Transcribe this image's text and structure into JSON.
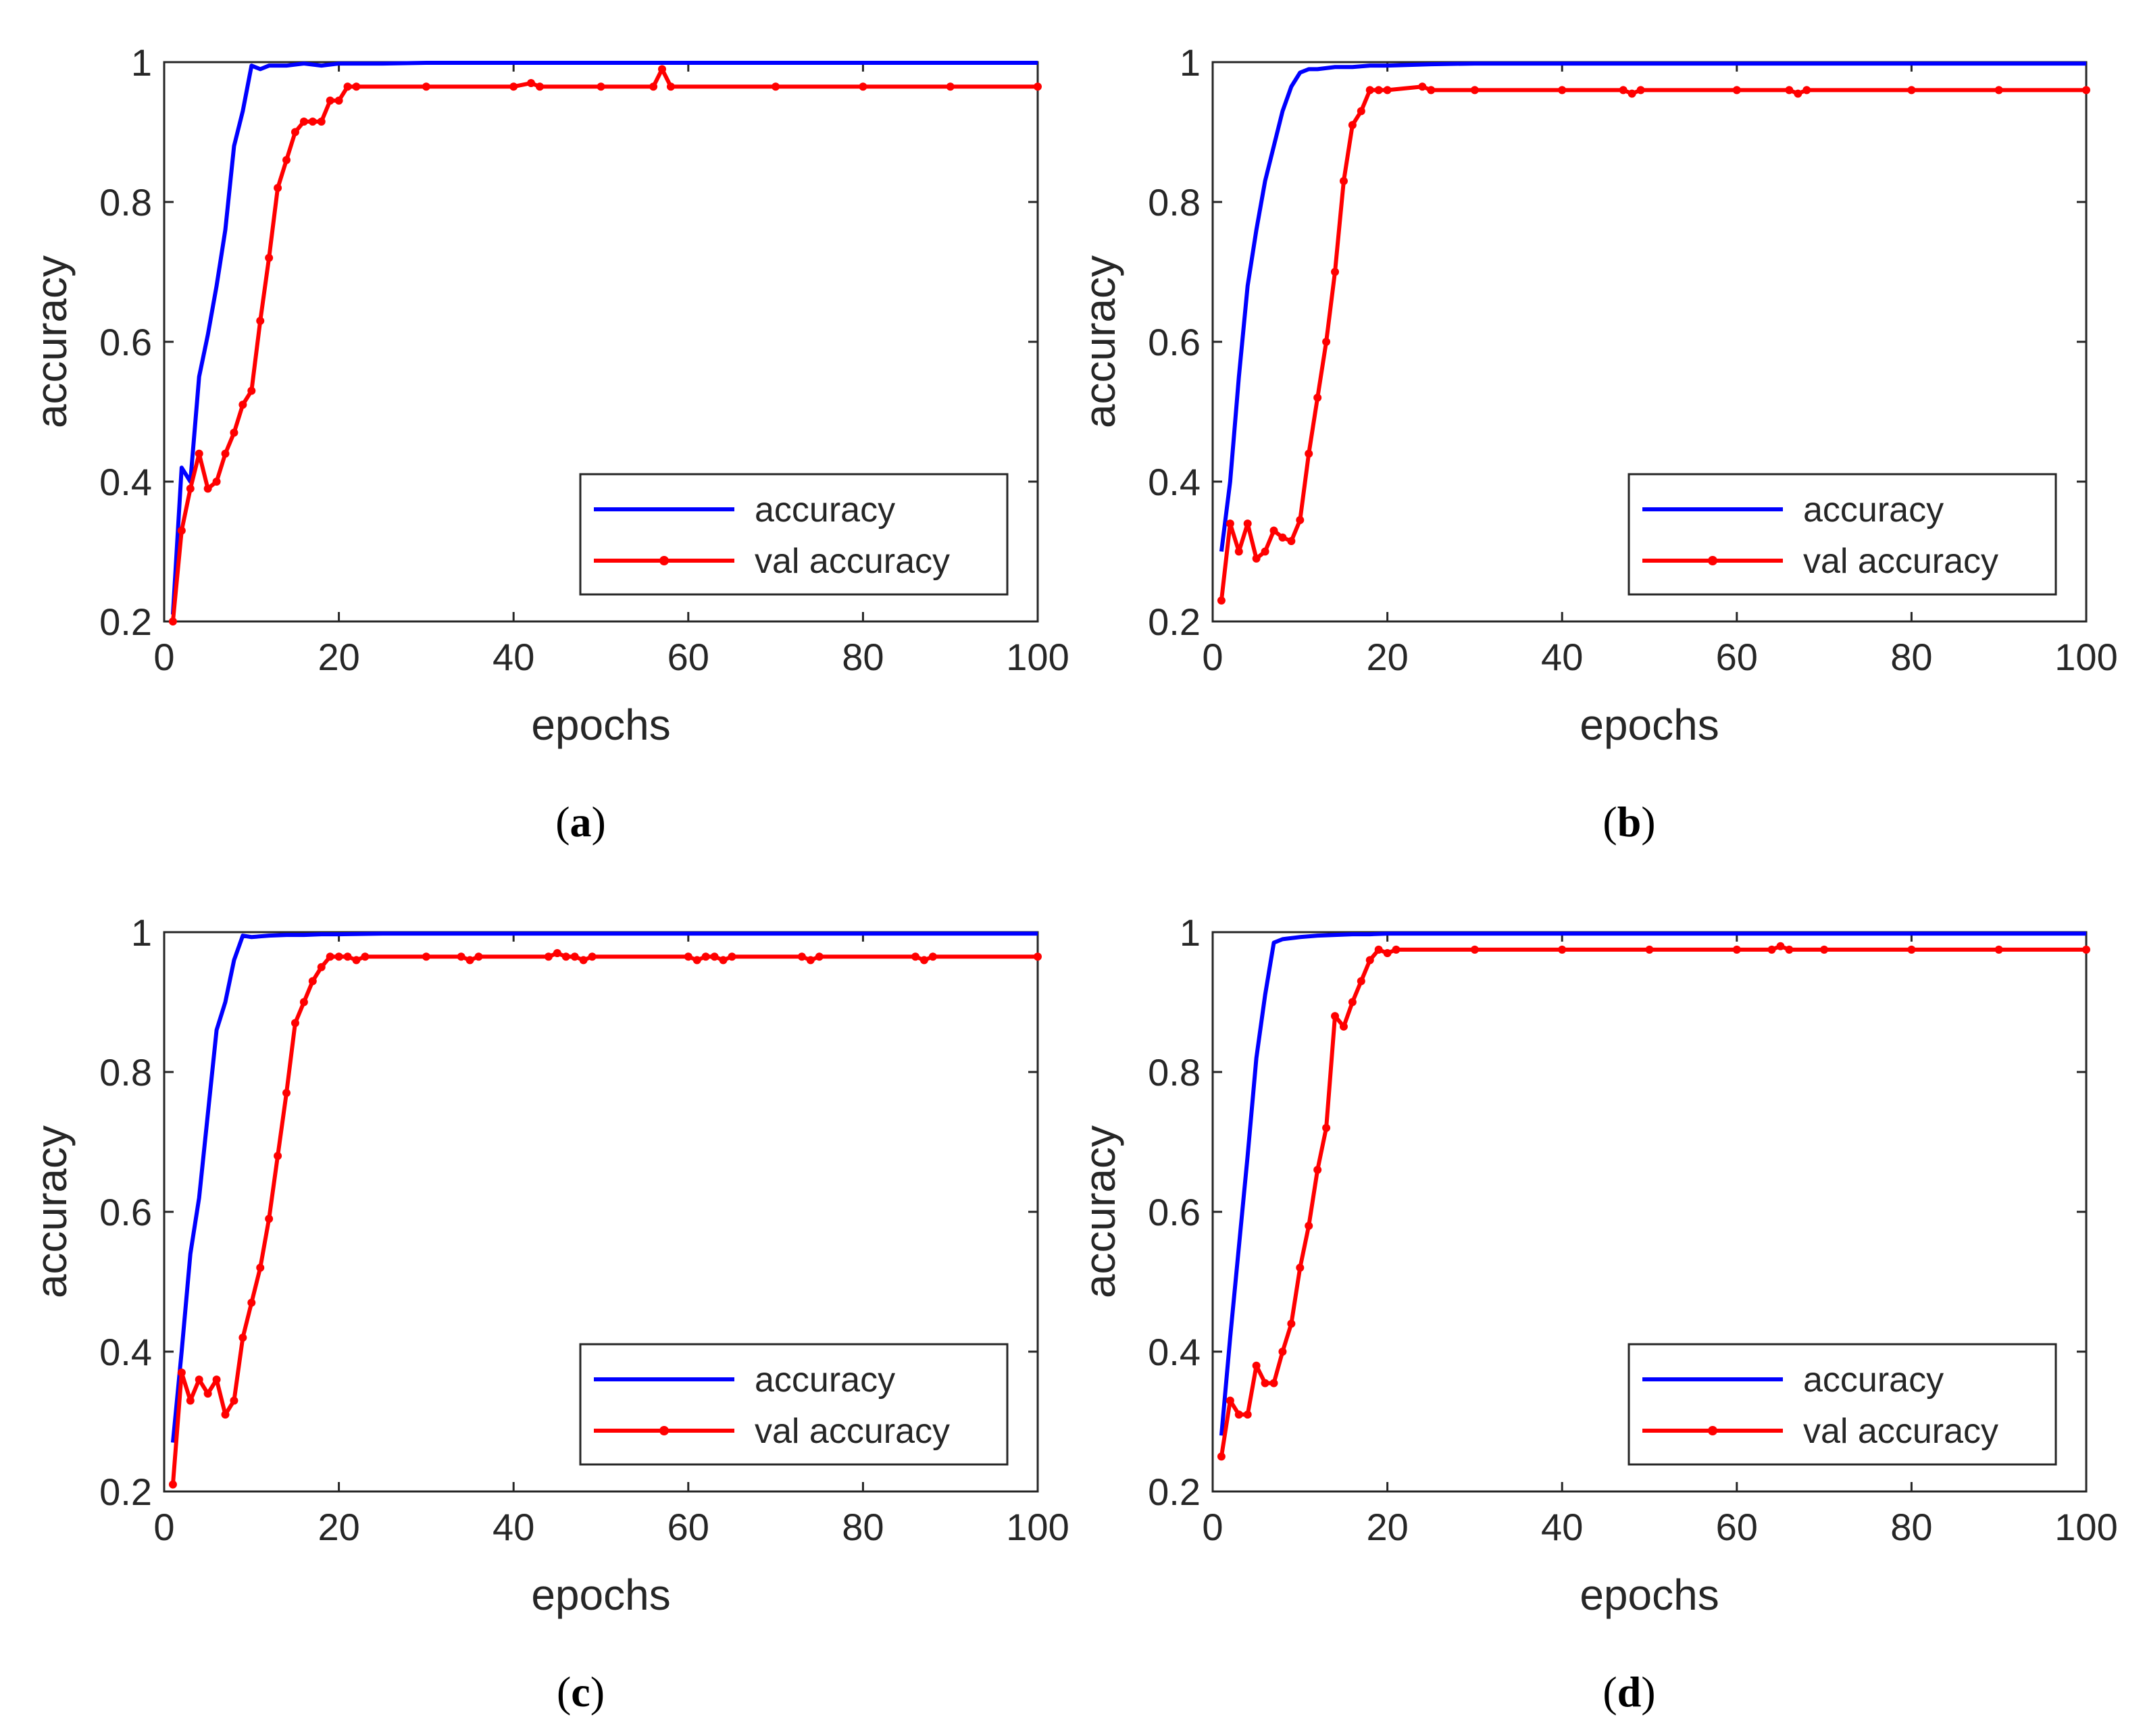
{
  "figure": {
    "series_colors": {
      "accuracy": "#0000ff",
      "val_accuracy": "#ff0000"
    },
    "axis_color": "#262626"
  },
  "chart_data": [
    {
      "panel": "a",
      "panel_open": "(",
      "panel_letter": "a",
      "panel_close": ")",
      "type": "line",
      "xlabel": "epochs",
      "ylabel": "accuracy",
      "xlim": [
        0,
        100
      ],
      "ylim": [
        0.2,
        1
      ],
      "xticks": [
        0,
        20,
        40,
        60,
        80,
        100
      ],
      "yticks": [
        0.2,
        0.4,
        0.6,
        0.8,
        1
      ],
      "xtick_labels": [
        "0",
        "20",
        "40",
        "60",
        "80",
        "100"
      ],
      "ytick_labels": [
        "0.2",
        "0.4",
        "0.6",
        "0.8",
        "1"
      ],
      "legend_position": "bottom-right",
      "legend_labels": [
        "accuracy",
        "val accuracy"
      ],
      "series": [
        {
          "name": "accuracy",
          "x": [
            1,
            2,
            3,
            4,
            5,
            6,
            7,
            8,
            9,
            10,
            11,
            12,
            14,
            16,
            18,
            20,
            25,
            30,
            40,
            50,
            60,
            70,
            80,
            90,
            100
          ],
          "values": [
            0.21,
            0.42,
            0.4,
            0.55,
            0.61,
            0.68,
            0.76,
            0.88,
            0.93,
            0.995,
            0.99,
            0.995,
            0.995,
            0.998,
            0.995,
            0.998,
            0.998,
            0.999,
            0.999,
            0.999,
            0.999,
            0.999,
            0.999,
            0.999,
            0.999
          ]
        },
        {
          "name": "val accuracy",
          "x": [
            1,
            2,
            3,
            4,
            5,
            6,
            7,
            8,
            9,
            10,
            11,
            12,
            13,
            14,
            15,
            16,
            17,
            18,
            19,
            20,
            21,
            22,
            30,
            40,
            42,
            43,
            50,
            56,
            57,
            58,
            70,
            80,
            90,
            100
          ],
          "values": [
            0.2,
            0.33,
            0.39,
            0.44,
            0.39,
            0.4,
            0.44,
            0.47,
            0.51,
            0.53,
            0.63,
            0.72,
            0.82,
            0.86,
            0.9,
            0.915,
            0.915,
            0.915,
            0.945,
            0.945,
            0.965,
            0.965,
            0.965,
            0.965,
            0.97,
            0.965,
            0.965,
            0.965,
            0.99,
            0.965,
            0.965,
            0.965,
            0.965,
            0.965
          ]
        }
      ]
    },
    {
      "panel": "b",
      "panel_open": "(",
      "panel_letter": "b",
      "panel_close": ")",
      "type": "line",
      "xlabel": "epochs",
      "ylabel": "accuracy",
      "xlim": [
        0,
        100
      ],
      "ylim": [
        0.2,
        1
      ],
      "xticks": [
        0,
        20,
        40,
        60,
        80,
        100
      ],
      "yticks": [
        0.2,
        0.4,
        0.6,
        0.8,
        1
      ],
      "xtick_labels": [
        "0",
        "20",
        "40",
        "60",
        "80",
        "100"
      ],
      "ytick_labels": [
        "0.2",
        "0.4",
        "0.6",
        "0.8",
        "1"
      ],
      "legend_position": "bottom-right",
      "legend_labels": [
        "accuracy",
        "val accuracy"
      ],
      "series": [
        {
          "name": "accuracy",
          "x": [
            1,
            2,
            3,
            4,
            5,
            6,
            7,
            8,
            9,
            10,
            11,
            12,
            14,
            16,
            18,
            20,
            25,
            30,
            40,
            50,
            60,
            70,
            80,
            90,
            100
          ],
          "values": [
            0.3,
            0.4,
            0.55,
            0.68,
            0.76,
            0.83,
            0.88,
            0.93,
            0.965,
            0.985,
            0.99,
            0.99,
            0.993,
            0.993,
            0.995,
            0.995,
            0.997,
            0.998,
            0.998,
            0.998,
            0.998,
            0.998,
            0.998,
            0.998,
            0.998
          ]
        },
        {
          "name": "val accuracy",
          "x": [
            1,
            2,
            3,
            4,
            5,
            6,
            7,
            8,
            9,
            10,
            11,
            12,
            13,
            14,
            15,
            16,
            17,
            18,
            19,
            20,
            24,
            25,
            30,
            40,
            47,
            48,
            49,
            60,
            66,
            67,
            68,
            80,
            90,
            100
          ],
          "values": [
            0.23,
            0.34,
            0.3,
            0.34,
            0.29,
            0.3,
            0.33,
            0.32,
            0.315,
            0.345,
            0.44,
            0.52,
            0.6,
            0.7,
            0.83,
            0.91,
            0.93,
            0.96,
            0.96,
            0.96,
            0.965,
            0.96,
            0.96,
            0.96,
            0.96,
            0.955,
            0.96,
            0.96,
            0.96,
            0.955,
            0.96,
            0.96,
            0.96,
            0.96
          ]
        }
      ]
    },
    {
      "panel": "c",
      "panel_open": "(",
      "panel_letter": "c",
      "panel_close": ")",
      "type": "line",
      "xlabel": "epochs",
      "ylabel": "accuracy",
      "xlim": [
        0,
        100
      ],
      "ylim": [
        0.2,
        1
      ],
      "xticks": [
        0,
        20,
        40,
        60,
        80,
        100
      ],
      "yticks": [
        0.2,
        0.4,
        0.6,
        0.8,
        1
      ],
      "xtick_labels": [
        "0",
        "20",
        "40",
        "60",
        "80",
        "100"
      ],
      "ytick_labels": [
        "0.2",
        "0.4",
        "0.6",
        "0.8",
        "1"
      ],
      "legend_position": "bottom-right",
      "legend_labels": [
        "accuracy",
        "val accuracy"
      ],
      "series": [
        {
          "name": "accuracy",
          "x": [
            1,
            2,
            3,
            4,
            5,
            6,
            7,
            8,
            9,
            10,
            12,
            14,
            16,
            18,
            20,
            25,
            30,
            40,
            50,
            60,
            70,
            80,
            90,
            100
          ],
          "values": [
            0.27,
            0.4,
            0.54,
            0.62,
            0.74,
            0.86,
            0.9,
            0.96,
            0.995,
            0.993,
            0.995,
            0.996,
            0.996,
            0.997,
            0.997,
            0.998,
            0.998,
            0.998,
            0.998,
            0.998,
            0.998,
            0.998,
            0.998,
            0.998
          ]
        },
        {
          "name": "val accuracy",
          "x": [
            1,
            2,
            3,
            4,
            5,
            6,
            7,
            8,
            9,
            10,
            11,
            12,
            13,
            14,
            15,
            16,
            17,
            18,
            19,
            20,
            21,
            22,
            23,
            30,
            34,
            35,
            36,
            44,
            45,
            46,
            47,
            48,
            49,
            60,
            61,
            62,
            63,
            64,
            65,
            73,
            74,
            75,
            86,
            87,
            88,
            100
          ],
          "values": [
            0.21,
            0.37,
            0.33,
            0.36,
            0.34,
            0.36,
            0.31,
            0.33,
            0.42,
            0.47,
            0.52,
            0.59,
            0.68,
            0.77,
            0.87,
            0.9,
            0.93,
            0.95,
            0.965,
            0.965,
            0.965,
            0.96,
            0.965,
            0.965,
            0.965,
            0.96,
            0.965,
            0.965,
            0.97,
            0.965,
            0.965,
            0.96,
            0.965,
            0.965,
            0.96,
            0.965,
            0.965,
            0.96,
            0.965,
            0.965,
            0.96,
            0.965,
            0.965,
            0.96,
            0.965,
            0.965
          ]
        }
      ]
    },
    {
      "panel": "d",
      "panel_open": "(",
      "panel_letter": "d",
      "panel_close": ")",
      "type": "line",
      "xlabel": "epochs",
      "ylabel": "accuracy",
      "xlim": [
        0,
        100
      ],
      "ylim": [
        0.2,
        1
      ],
      "xticks": [
        0,
        20,
        40,
        60,
        80,
        100
      ],
      "yticks": [
        0.2,
        0.4,
        0.6,
        0.8,
        1
      ],
      "xtick_labels": [
        "0",
        "20",
        "40",
        "60",
        "80",
        "100"
      ],
      "ytick_labels": [
        "0.2",
        "0.4",
        "0.6",
        "0.8",
        "1"
      ],
      "legend_position": "bottom-right",
      "legend_labels": [
        "accuracy",
        "val accuracy"
      ],
      "series": [
        {
          "name": "accuracy",
          "x": [
            1,
            2,
            3,
            4,
            5,
            6,
            7,
            8,
            10,
            12,
            14,
            16,
            18,
            20,
            25,
            30,
            40,
            50,
            60,
            70,
            80,
            90,
            100
          ],
          "values": [
            0.28,
            0.42,
            0.55,
            0.68,
            0.82,
            0.91,
            0.985,
            0.99,
            0.993,
            0.995,
            0.996,
            0.997,
            0.997,
            0.998,
            0.998,
            0.998,
            0.998,
            0.998,
            0.998,
            0.998,
            0.998,
            0.998,
            0.998
          ]
        },
        {
          "name": "val accuracy",
          "x": [
            1,
            2,
            3,
            4,
            5,
            6,
            7,
            8,
            9,
            10,
            11,
            12,
            13,
            14,
            15,
            16,
            17,
            18,
            19,
            20,
            21,
            30,
            40,
            50,
            60,
            64,
            65,
            66,
            70,
            80,
            90,
            100
          ],
          "values": [
            0.25,
            0.33,
            0.31,
            0.31,
            0.38,
            0.355,
            0.355,
            0.4,
            0.44,
            0.52,
            0.58,
            0.66,
            0.72,
            0.88,
            0.865,
            0.9,
            0.93,
            0.96,
            0.975,
            0.97,
            0.975,
            0.975,
            0.975,
            0.975,
            0.975,
            0.975,
            0.98,
            0.975,
            0.975,
            0.975,
            0.975,
            0.975
          ]
        }
      ]
    }
  ]
}
